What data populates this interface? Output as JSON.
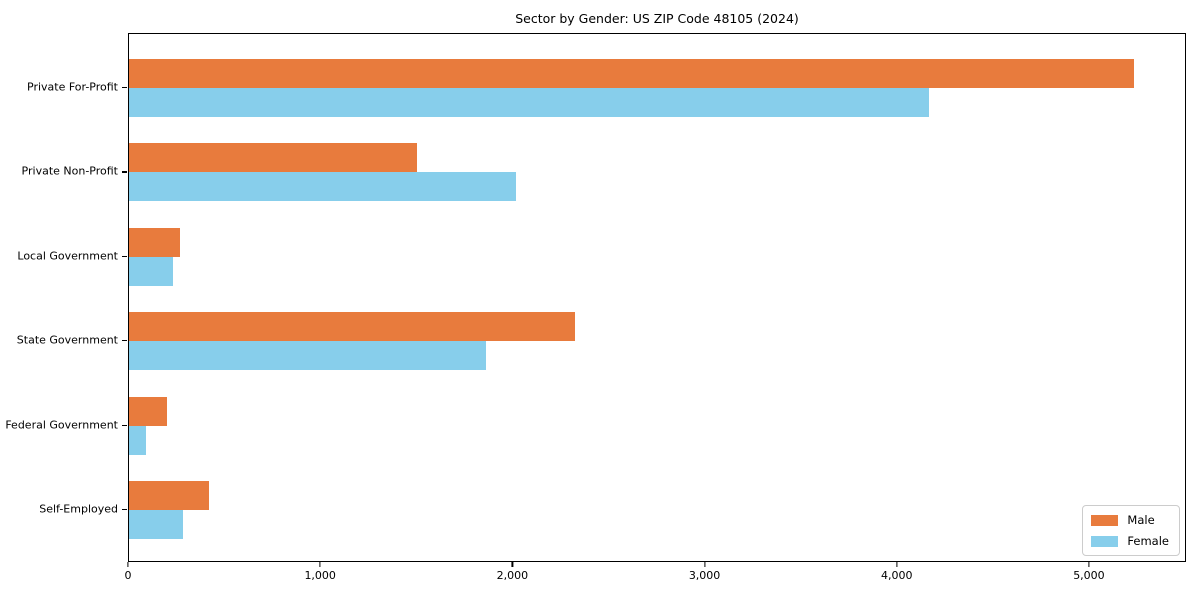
{
  "title": "Sector by Gender: US ZIP Code 48105 (2024)",
  "colors": {
    "male": "#E87B3D",
    "female": "#87CEEB",
    "frame": "#000000",
    "background": "#ffffff",
    "legend_border": "#cccccc"
  },
  "chart_data": {
    "type": "bar",
    "orientation": "horizontal",
    "title": "Sector by Gender: US ZIP Code 48105 (2024)",
    "xlabel": "",
    "ylabel": "",
    "categories": [
      "Private For-Profit",
      "Private Non-Profit",
      "Local Government",
      "State Government",
      "Federal Government",
      "Self-Employed"
    ],
    "series": [
      {
        "name": "Male",
        "color": "#E87B3D",
        "values": [
          5240,
          1500,
          265,
          2325,
          200,
          415
        ]
      },
      {
        "name": "Female",
        "color": "#87CEEB",
        "values": [
          4170,
          2020,
          230,
          1860,
          90,
          280
        ]
      }
    ],
    "xlim": [
      0,
      5505
    ],
    "x_tick_values": [
      0,
      1000,
      2000,
      3000,
      4000,
      5000
    ],
    "x_tick_labels": [
      "0",
      "1,000",
      "2,000",
      "3,000",
      "4,000",
      "5,000"
    ],
    "grid": false,
    "legend_position": "lower right",
    "legend_entries": [
      "Male",
      "Female"
    ]
  }
}
